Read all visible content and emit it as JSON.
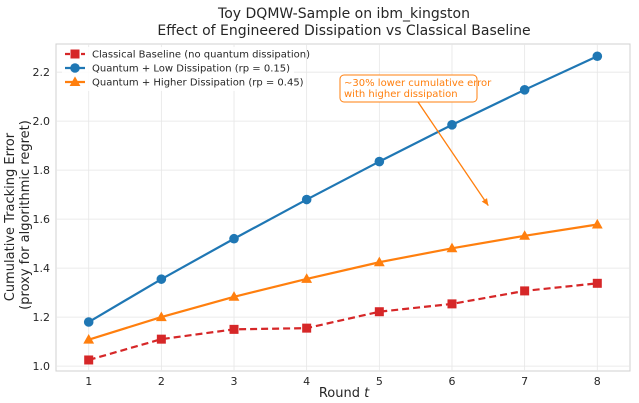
{
  "chart_data": {
    "type": "line",
    "title": "Toy DQMW-Sample on ibm_kingston",
    "subtitle": "Effect of Engineered Dissipation vs Classical Baseline",
    "xlabel": "Round t",
    "ylabel": [
      "Cumulative Tracking Error",
      "(proxy for algorithmic regret)"
    ],
    "x": [
      1,
      2,
      3,
      4,
      5,
      6,
      7,
      8
    ],
    "xlim": [
      0.55,
      8.45
    ],
    "ylim": [
      0.98,
      2.315
    ],
    "xticks": [
      1,
      2,
      3,
      4,
      5,
      6,
      7,
      8
    ],
    "yticks": [
      1.0,
      1.2,
      1.4,
      1.6,
      1.8,
      2.0,
      2.2
    ],
    "grid": true,
    "legend_position": "upper-left",
    "series": [
      {
        "name": "Classical Baseline (no quantum dissipation)",
        "values": [
          1.025,
          1.11,
          1.15,
          1.155,
          1.222,
          1.254,
          1.307,
          1.338
        ],
        "color": "#d62728",
        "marker": "square",
        "linestyle": "dashed"
      },
      {
        "name": "Quantum + Low Dissipation (rp = 0.15)",
        "values": [
          1.18,
          1.355,
          1.52,
          1.68,
          1.835,
          1.985,
          2.128,
          2.265
        ],
        "color": "#1f77b4",
        "marker": "circle",
        "linestyle": "solid"
      },
      {
        "name": "Quantum + Higher Dissipation (rp = 0.45)",
        "values": [
          1.108,
          1.2,
          1.283,
          1.356,
          1.424,
          1.481,
          1.532,
          1.578
        ],
        "color": "#ff7f0e",
        "marker": "triangle",
        "linestyle": "solid"
      }
    ],
    "annotation": {
      "text": [
        "~30% lower cumulative error",
        "with higher dissipation"
      ],
      "color": "#ff7f0e",
      "arrow_target": {
        "x": 6.5,
        "y": 1.655
      }
    }
  }
}
